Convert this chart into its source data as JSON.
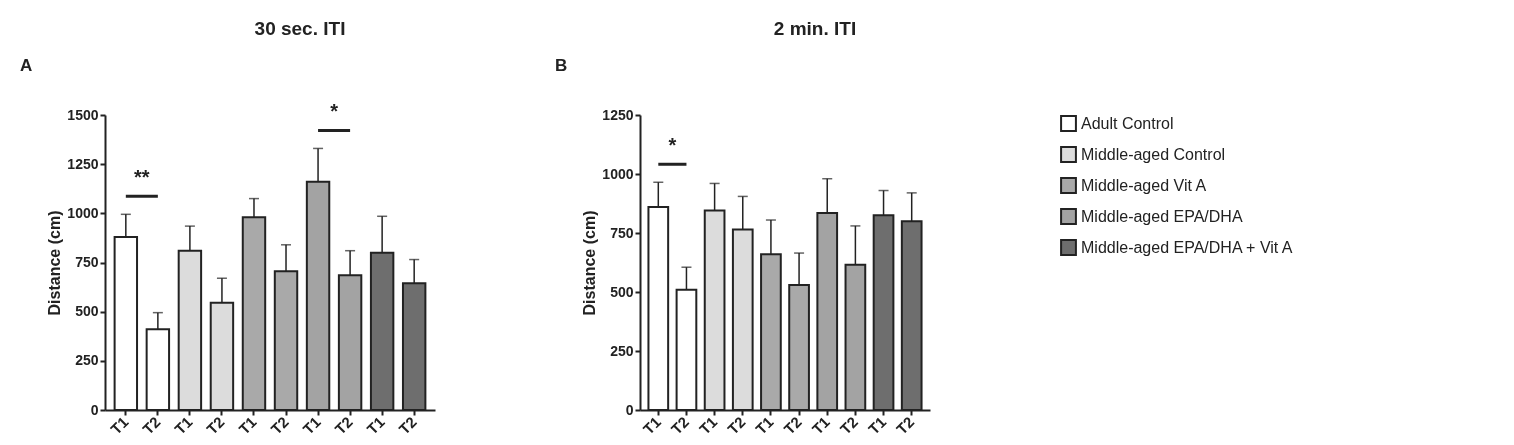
{
  "chart_data": [
    {
      "type": "bar",
      "title": "30 sec. ITI",
      "ylabel": "Distance (cm)",
      "categories": [
        "T1",
        "T2",
        "T1",
        "T2",
        "T1",
        "T2",
        "T1",
        "T2",
        "T1",
        "T2"
      ],
      "ylim": [
        0,
        1500
      ],
      "yticks": [
        0,
        250,
        500,
        750,
        1000,
        1250,
        1500
      ],
      "legend": "right",
      "annotations": [
        "A",
        "**",
        "*"
      ],
      "series": [
        {
          "name": "Adult Control",
          "color": "#ffffff",
          "values": [
            880,
            410,
            null,
            null,
            null,
            null,
            null,
            null,
            null,
            null
          ],
          "errors": [
            [
              880,
              995
            ],
            [
              410,
              495
            ],
            null,
            null,
            null,
            null,
            null,
            null,
            null,
            null
          ]
        },
        {
          "name": "Middle-aged Control",
          "color": "#dcdcdc",
          "values": [
            null,
            null,
            810,
            545,
            null,
            null,
            null,
            null,
            null,
            null
          ],
          "errors": [
            null,
            null,
            [
              810,
              935
            ],
            [
              545,
              670
            ],
            null,
            null,
            null,
            null,
            null,
            null
          ]
        },
        {
          "name": "Middle-aged Vit A",
          "color": "#a9a9a9",
          "values": [
            null,
            null,
            null,
            null,
            980,
            705,
            null,
            null,
            null,
            null
          ],
          "errors": [
            null,
            null,
            null,
            null,
            [
              980,
              1075
            ],
            [
              705,
              840
            ],
            null,
            null,
            null,
            null
          ]
        },
        {
          "name": "Middle-aged EPA/DHA",
          "color": "#a3a3a3",
          "values": [
            null,
            null,
            null,
            null,
            null,
            null,
            1160,
            685,
            null,
            null
          ],
          "errors": [
            null,
            null,
            null,
            null,
            null,
            null,
            [
              1160,
              1330
            ],
            [
              685,
              810
            ],
            null,
            null
          ]
        },
        {
          "name": "Middle-aged EPA/DHA + Vit A",
          "color": "#6e6e6e",
          "values": [
            null,
            null,
            null,
            null,
            null,
            null,
            null,
            null,
            800,
            645
          ],
          "errors": [
            null,
            null,
            null,
            null,
            null,
            null,
            null,
            null,
            [
              800,
              985
            ],
            [
              645,
              765
            ]
          ]
        }
      ]
    },
    {
      "type": "bar",
      "title": "2 min. ITI",
      "ylabel": "Distance (cm)",
      "categories": [
        "T1",
        "T2",
        "T1",
        "T2",
        "T1",
        "T2",
        "T1",
        "T2",
        "T1",
        "T2"
      ],
      "ylim": [
        0,
        1250
      ],
      "yticks": [
        0,
        250,
        500,
        750,
        1000,
        1250
      ],
      "legend": "right",
      "annotations": [
        "B",
        "*"
      ],
      "series": [
        {
          "name": "Adult Control",
          "color": "#ffffff",
          "values": [
            860,
            510,
            null,
            null,
            null,
            null,
            null,
            null,
            null,
            null
          ],
          "errors": [
            [
              860,
              965
            ],
            [
              510,
              605
            ],
            null,
            null,
            null,
            null,
            null,
            null,
            null,
            null
          ]
        },
        {
          "name": "Middle-aged Control",
          "color": "#dcdcdc",
          "values": [
            null,
            null,
            845,
            765,
            null,
            null,
            null,
            null,
            null,
            null
          ],
          "errors": [
            null,
            null,
            [
              845,
              960
            ],
            [
              765,
              905
            ],
            null,
            null,
            null,
            null,
            null,
            null
          ]
        },
        {
          "name": "Middle-aged Vit A",
          "color": "#a9a9a9",
          "values": [
            null,
            null,
            null,
            null,
            660,
            530,
            null,
            null,
            null,
            null
          ],
          "errors": [
            null,
            null,
            null,
            null,
            [
              660,
              805
            ],
            [
              530,
              665
            ],
            null,
            null,
            null,
            null
          ]
        },
        {
          "name": "Middle-aged EPA/DHA",
          "color": "#a3a3a3",
          "values": [
            null,
            null,
            null,
            null,
            null,
            null,
            835,
            615,
            null,
            null
          ],
          "errors": [
            null,
            null,
            null,
            null,
            null,
            null,
            [
              835,
              980
            ],
            [
              615,
              780
            ],
            null,
            null
          ]
        },
        {
          "name": "Middle-aged EPA/DHA + Vit A",
          "color": "#6e6e6e",
          "values": [
            null,
            null,
            null,
            null,
            null,
            null,
            null,
            null,
            825,
            800
          ],
          "errors": [
            null,
            null,
            null,
            null,
            null,
            null,
            null,
            null,
            [
              825,
              930
            ],
            [
              800,
              920
            ]
          ]
        }
      ]
    }
  ]
}
